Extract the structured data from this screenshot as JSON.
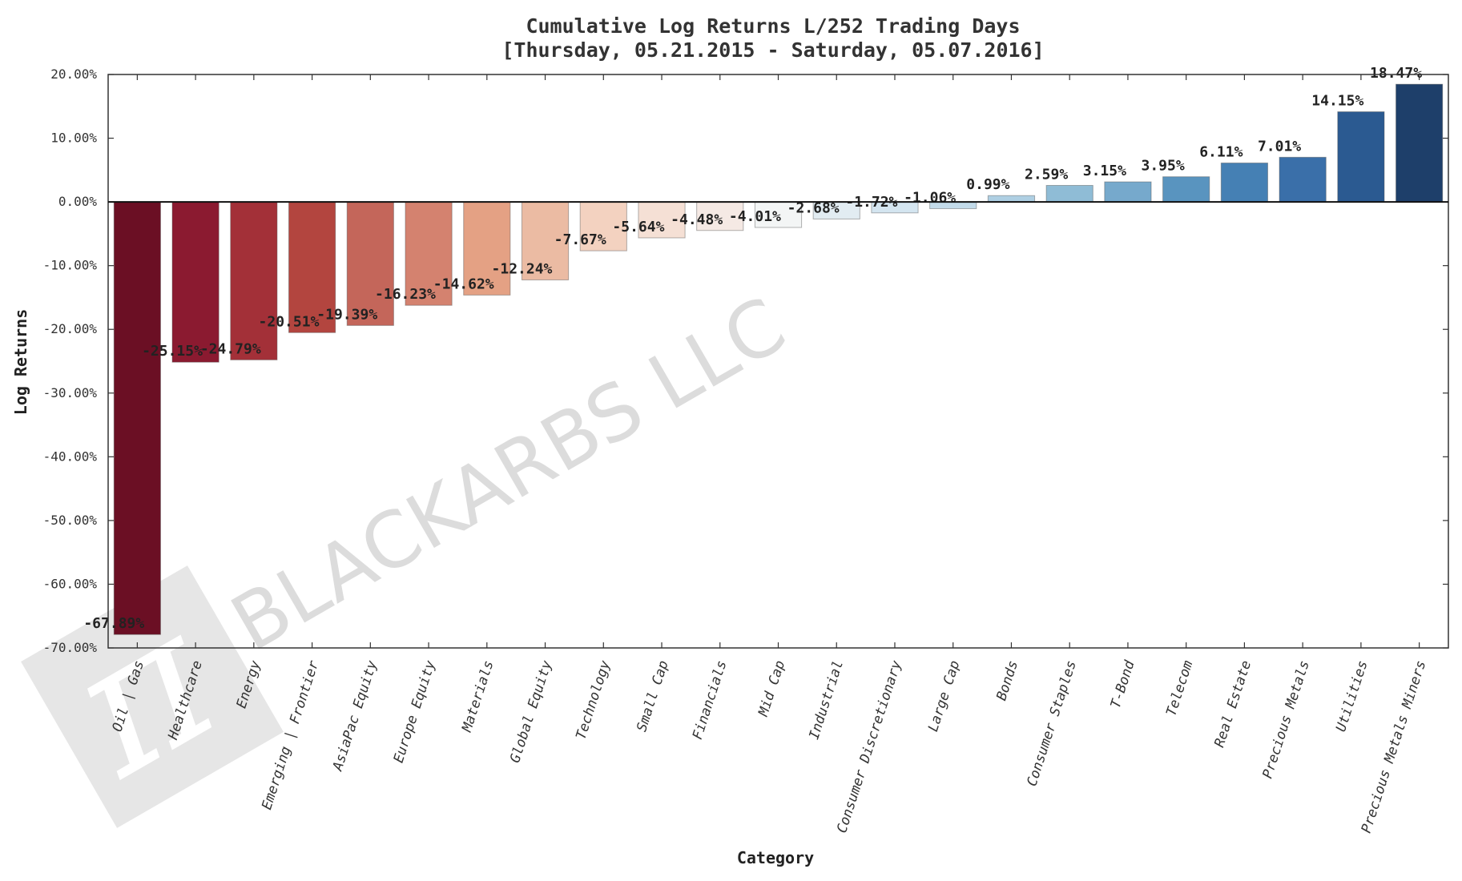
{
  "chart_data": {
    "type": "bar",
    "title": "Cumulative Log Returns L/252 Trading Days",
    "subtitle": "[Thursday, 05.21.2015 - Saturday, 05.07.2016]",
    "xlabel": "Category",
    "ylabel": "Log Returns",
    "ylim": [
      -70,
      20
    ],
    "yticks": [
      20,
      10,
      0,
      -10,
      -20,
      -30,
      -40,
      -50,
      -60,
      -70
    ],
    "ytick_labels": [
      "20.00%",
      "10.00%",
      "0.00%",
      "-10.00%",
      "-20.00%",
      "-30.00%",
      "-40.00%",
      "-50.00%",
      "-60.00%",
      "-70.00%"
    ],
    "grid": false,
    "categories": [
      "Oil | Gas",
      "Healthcare",
      "Energy",
      "Emerging | Frontier",
      "AsiaPac Equity",
      "Europe Equity",
      "Materials",
      "Global Equity",
      "Technology",
      "Small Cap",
      "Financials",
      "Mid Cap",
      "Industrial",
      "Consumer Discretionary",
      "Large Cap",
      "Bonds",
      "Consumer Staples",
      "T-Bond",
      "Telecom",
      "Real Estate",
      "Precious Metals",
      "Utilities",
      "Precious Metals Miners"
    ],
    "values": [
      -67.89,
      -25.15,
      -24.79,
      -20.51,
      -19.39,
      -16.23,
      -14.62,
      -12.24,
      -7.67,
      -5.64,
      -4.48,
      -4.01,
      -2.68,
      -1.72,
      -1.06,
      0.99,
      2.59,
      3.15,
      3.95,
      6.11,
      7.01,
      14.15,
      18.47
    ],
    "value_labels": [
      "-67.89%",
      "-25.15%",
      "-24.79%",
      "-20.51%",
      "-19.39%",
      "-16.23%",
      "-14.62%",
      "-12.24%",
      "-7.67%",
      "-5.64%",
      "-4.48%",
      "-4.01%",
      "-2.68%",
      "-1.72%",
      "-1.06%",
      "0.99%",
      "2.59%",
      "3.15%",
      "3.95%",
      "6.11%",
      "7.01%",
      "14.15%",
      "18.47%"
    ],
    "colors": [
      "#6b0f24",
      "#8b1a30",
      "#a33038",
      "#b3453f",
      "#c4665a",
      "#d4826f",
      "#e4a184",
      "#ebbba3",
      "#f3d2c0",
      "#f5e0d5",
      "#f5e9e4",
      "#f3f5f5",
      "#e2ecf2",
      "#d4e5f0",
      "#c3dbea",
      "#aecfe3",
      "#8fbcd6",
      "#76a9cc",
      "#5994bf",
      "#4580b4",
      "#3a6fa9",
      "#2b5a91",
      "#1e3f6a"
    ],
    "colorscale": "RdBu"
  },
  "watermark": {
    "text": "BLACKARBS LLC",
    "logo_glyph": "π"
  }
}
